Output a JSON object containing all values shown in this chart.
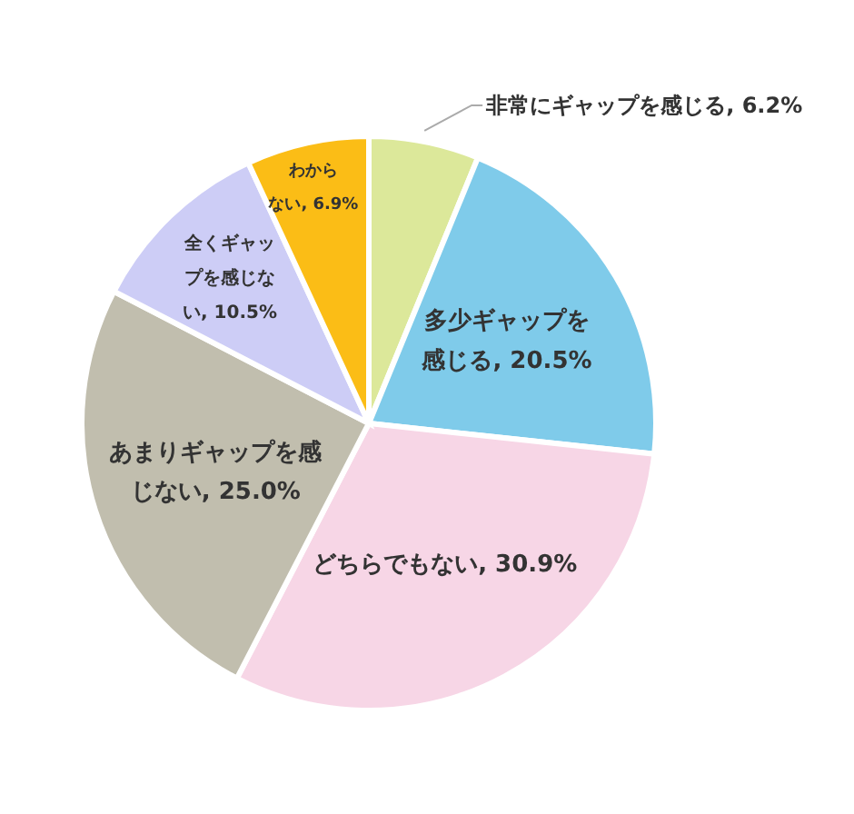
{
  "chart_data": {
    "type": "pie",
    "categories": [
      "非常にギャップを感じる",
      "多少ギャップを感じる",
      "どちらでもない",
      "あまりギャップを感じない",
      "全くギャップを感じない",
      "わからない"
    ],
    "value_labels": [
      "6.2%",
      "20.5%",
      "30.9%",
      "25.0%",
      "10.5%",
      "6.9%"
    ],
    "values": [
      6.2,
      20.5,
      30.9,
      25.0,
      10.5,
      6.9
    ],
    "colors": [
      "#dce89a",
      "#7fcbea",
      "#f7d6e6",
      "#c1beae",
      "#cdcdf6",
      "#fbbd16"
    ],
    "data_labels": true,
    "legend": false
  }
}
